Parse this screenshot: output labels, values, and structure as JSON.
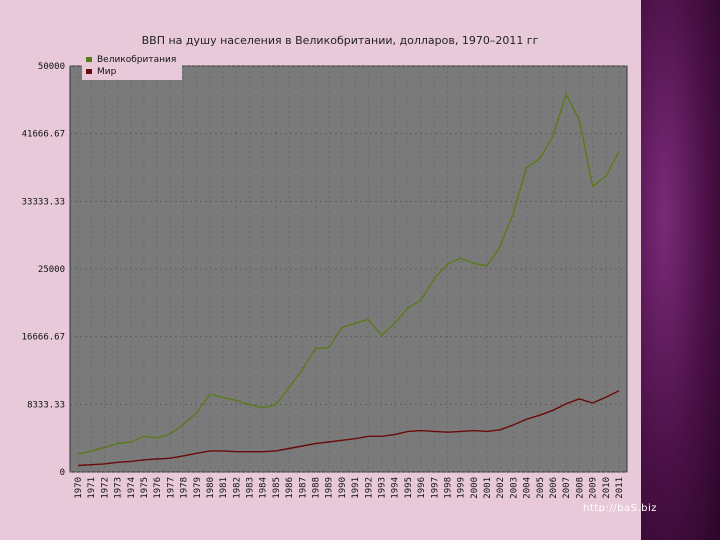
{
  "chart_data": {
    "type": "line",
    "title": "ВВП на душу населения в Великобритании, долларов, 1970–2011 гг",
    "xlabel": "",
    "ylabel": "",
    "x": [
      1970,
      1971,
      1972,
      1973,
      1974,
      1975,
      1976,
      1977,
      1978,
      1979,
      1980,
      1981,
      1982,
      1983,
      1984,
      1985,
      1986,
      1987,
      1988,
      1989,
      1990,
      1991,
      1992,
      1993,
      1994,
      1995,
      1996,
      1997,
      1998,
      1999,
      2000,
      2001,
      2002,
      2003,
      2004,
      2005,
      2006,
      2007,
      2008,
      2009,
      2010,
      2011
    ],
    "ylim": [
      0,
      50000
    ],
    "yticks": [
      "0",
      "8333.33",
      "16666.67",
      "25000",
      "33333.33",
      "41666.67",
      "50000"
    ],
    "series": [
      {
        "name": "Великобритания",
        "color": "#5a7a1a",
        "values": [
          2200,
          2600,
          3000,
          3500,
          3700,
          4400,
          4200,
          4700,
          5900,
          7300,
          9600,
          9200,
          8800,
          8300,
          7900,
          8300,
          10400,
          12600,
          15200,
          15300,
          17800,
          18300,
          18800,
          16800,
          18300,
          20200,
          21200,
          23800,
          25600,
          26300,
          25700,
          25400,
          27800,
          31900,
          37500,
          38600,
          41400,
          46500,
          43300,
          35200,
          36400,
          39500
        ]
      },
      {
        "name": "Мир",
        "color": "#6a0a0a",
        "values": [
          800,
          900,
          1000,
          1200,
          1300,
          1500,
          1600,
          1700,
          2000,
          2300,
          2600,
          2600,
          2500,
          2500,
          2500,
          2600,
          2900,
          3200,
          3500,
          3700,
          3900,
          4100,
          4400,
          4400,
          4600,
          5000,
          5100,
          5000,
          4900,
          5000,
          5100,
          5000,
          5200,
          5800,
          6500,
          7000,
          7600,
          8400,
          9000,
          8500,
          9200,
          10000
        ]
      }
    ],
    "legend": "top-left",
    "grid": true
  },
  "watermark": "http://baS.biz"
}
